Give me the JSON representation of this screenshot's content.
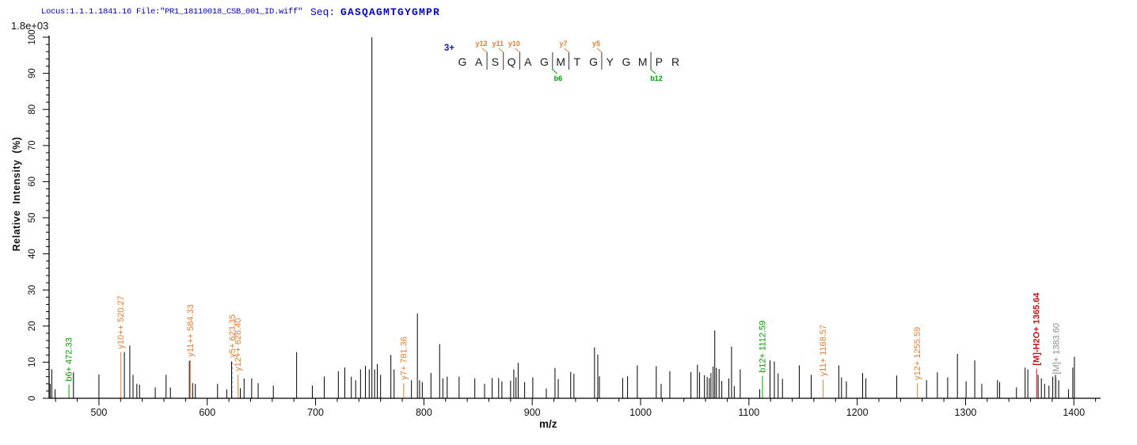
{
  "header": {
    "locus_file": "Locus:1.1.1.1841.16 File:\"PR1_18110018_CSB_001_ID.wiff\"",
    "seq_label": "Seq:",
    "seq_value": "GASQAGMTGYGMPR"
  },
  "scale_label": "1.8e+03",
  "colors": {
    "header_text": "#0000cc",
    "y_ion": "#e87e32",
    "b_ion": "#00a000",
    "precursor_loss": "#cc1111",
    "precursor": "#8c8c8c",
    "peak": "#000000",
    "axis": "#000000",
    "charge_label": "#1414cc",
    "dashed_leader": "#aab8cc",
    "sequence_letter": "#1a1a1a"
  },
  "chart_data": {
    "type": "bar",
    "subtype": "ms2-fragmentation-spectrum",
    "title": "",
    "xlabel": "m/z",
    "ylabel": "Relative Intensity (%)",
    "x_range": [
      454,
      1421
    ],
    "y_range": [
      0,
      100
    ],
    "x_ticks": [
      500,
      600,
      700,
      800,
      900,
      1000,
      1100,
      1200,
      1300,
      1400
    ],
    "x_minor_step": 20,
    "y_ticks": [
      0,
      10,
      20,
      30,
      40,
      50,
      60,
      70,
      80,
      90,
      100
    ],
    "y_minor_step": 2,
    "grid": false,
    "legend": false,
    "base_peak_absolute_intensity": "1.8e+03",
    "precursor_charge": "3+",
    "peptide_sequence": [
      "G",
      "A",
      "S",
      "Q",
      "A",
      "G",
      "M",
      "T",
      "G",
      "Y",
      "G",
      "M",
      "P",
      "R"
    ],
    "fragment_markers": {
      "y_ions": [
        {
          "label": "y12",
          "before_residue_index": 2
        },
        {
          "label": "y11",
          "before_residue_index": 3
        },
        {
          "label": "y10",
          "before_residue_index": 4
        },
        {
          "label": "y7",
          "before_residue_index": 7
        },
        {
          "label": "y5",
          "before_residue_index": 9
        }
      ],
      "b_ions": [
        {
          "label": "b6",
          "before_residue_index": 6
        },
        {
          "label": "b12",
          "before_residue_index": 12
        }
      ]
    },
    "labeled_peaks": [
      {
        "label": "b6+ 472.33",
        "mz": 472.33,
        "pct": 3.8,
        "color_key": "b_ion"
      },
      {
        "label": "y10++ 520.27",
        "mz": 520.27,
        "pct": 12.8,
        "color_key": "y_ion"
      },
      {
        "label": "y11++ 584.33",
        "mz": 584.33,
        "pct": 10.6,
        "color_key": "y_ion"
      },
      {
        "label": "y5+ 623.35",
        "mz": 623.35,
        "pct": 10.4,
        "color_key": "y_ion",
        "dashed": true
      },
      {
        "label": "y12++ 628.40",
        "mz": 628.4,
        "pct": 6.6,
        "color_key": "y_ion"
      },
      {
        "label": "y7+ 781.36",
        "mz": 781.36,
        "pct": 4.2,
        "color_key": "y_ion"
      },
      {
        "label": "b12+ 1112.59",
        "mz": 1112.59,
        "pct": 6.2,
        "color_key": "b_ion"
      },
      {
        "label": "y11+ 1168.57",
        "mz": 1168.57,
        "pct": 5.2,
        "color_key": "y_ion"
      },
      {
        "label": "y12+ 1255.59",
        "mz": 1255.59,
        "pct": 4.2,
        "color_key": "y_ion"
      },
      {
        "label": "[M]-H2O+ 1365.64",
        "mz": 1365.64,
        "pct": 8.2,
        "color_key": "precursor_loss",
        "bold": true
      },
      {
        "label": "[M]+ 1383.60",
        "mz": 1383.6,
        "pct": 5.8,
        "color_key": "precursor"
      }
    ],
    "peaks": [
      [
        455.0,
        4.0
      ],
      [
        456.5,
        8.0
      ],
      [
        459.5,
        2.5
      ],
      [
        476.5,
        7.2
      ],
      [
        500.0,
        6.6
      ],
      [
        523.5,
        12.8
      ],
      [
        528.5,
        14.6
      ],
      [
        531.5,
        6.5
      ],
      [
        535.0,
        4.0
      ],
      [
        537.5,
        3.8
      ],
      [
        552.0,
        3.0
      ],
      [
        562.0,
        6.5
      ],
      [
        566.0,
        3.0
      ],
      [
        583.5,
        10.4
      ],
      [
        586.5,
        4.2
      ],
      [
        589.0,
        4.0
      ],
      [
        609.5,
        4.0
      ],
      [
        618.0,
        2.5
      ],
      [
        622.5,
        10.2
      ],
      [
        630.5,
        2.8
      ],
      [
        634.0,
        5.5
      ],
      [
        641.0,
        5.5
      ],
      [
        647.0,
        4.2
      ],
      [
        661.0,
        3.5
      ],
      [
        682.5,
        12.8
      ],
      [
        697.0,
        3.5
      ],
      [
        708.0,
        6.0
      ],
      [
        721.0,
        7.5
      ],
      [
        727.0,
        8.5
      ],
      [
        733.0,
        6.0
      ],
      [
        737.0,
        5.0
      ],
      [
        741.5,
        8.0
      ],
      [
        746.0,
        9.0
      ],
      [
        749.5,
        8.0
      ],
      [
        752.0,
        100.0
      ],
      [
        754.5,
        8.0
      ],
      [
        757.0,
        9.5
      ],
      [
        760.0,
        6.5
      ],
      [
        769.5,
        12.0
      ],
      [
        772.5,
        8.0
      ],
      [
        788.5,
        5.0
      ],
      [
        794.0,
        23.5
      ],
      [
        796.0,
        5.0
      ],
      [
        798.5,
        4.5
      ],
      [
        806.5,
        7.0
      ],
      [
        814.5,
        15.0
      ],
      [
        817.5,
        5.5
      ],
      [
        821.5,
        6.0
      ],
      [
        832.5,
        6.0
      ],
      [
        847.0,
        5.5
      ],
      [
        856.0,
        4.0
      ],
      [
        863.0,
        5.6
      ],
      [
        869.0,
        5.6
      ],
      [
        872.0,
        4.7
      ],
      [
        880.0,
        4.9
      ],
      [
        883.0,
        8.0
      ],
      [
        885.0,
        5.8
      ],
      [
        887.0,
        9.8
      ],
      [
        893.0,
        4.5
      ],
      [
        900.5,
        5.8
      ],
      [
        913.0,
        2.7
      ],
      [
        921.0,
        8.4
      ],
      [
        924.0,
        5.3
      ],
      [
        935.5,
        7.3
      ],
      [
        938.5,
        6.8
      ],
      [
        957.5,
        14.1
      ],
      [
        960.5,
        12.1
      ],
      [
        962.0,
        6.1
      ],
      [
        983.5,
        5.6
      ],
      [
        988.0,
        6.1
      ],
      [
        997.0,
        9.1
      ],
      [
        1014.5,
        8.9
      ],
      [
        1019.0,
        4.0
      ],
      [
        1027.0,
        7.5
      ],
      [
        1046.5,
        7.3
      ],
      [
        1052.5,
        9.3
      ],
      [
        1054.5,
        7.2
      ],
      [
        1059.0,
        6.4
      ],
      [
        1061.5,
        5.9
      ],
      [
        1063.5,
        5.6
      ],
      [
        1065.0,
        7.0
      ],
      [
        1067.0,
        8.8
      ],
      [
        1068.5,
        18.8
      ],
      [
        1070.0,
        8.4
      ],
      [
        1072.5,
        8.1
      ],
      [
        1075.0,
        4.8
      ],
      [
        1081.5,
        5.5
      ],
      [
        1084.0,
        14.3
      ],
      [
        1086.5,
        3.4
      ],
      [
        1092.0,
        8.0
      ],
      [
        1110.0,
        2.5
      ],
      [
        1119.5,
        10.5
      ],
      [
        1123.5,
        10.2
      ],
      [
        1127.0,
        6.9
      ],
      [
        1131.0,
        5.4
      ],
      [
        1146.5,
        9.1
      ],
      [
        1157.5,
        6.5
      ],
      [
        1183.0,
        9.1
      ],
      [
        1185.5,
        5.8
      ],
      [
        1190.0,
        4.7
      ],
      [
        1205.0,
        7.0
      ],
      [
        1208.0,
        5.5
      ],
      [
        1236.5,
        6.3
      ],
      [
        1264.0,
        5.0
      ],
      [
        1274.0,
        7.2
      ],
      [
        1283.5,
        5.8
      ],
      [
        1292.5,
        12.3
      ],
      [
        1300.5,
        4.7
      ],
      [
        1308.5,
        10.5
      ],
      [
        1315.0,
        4.0
      ],
      [
        1329.5,
        5.0
      ],
      [
        1331.5,
        4.5
      ],
      [
        1347.0,
        3.0
      ],
      [
        1355.0,
        8.5
      ],
      [
        1357.5,
        8.0
      ],
      [
        1367.0,
        6.5
      ],
      [
        1370.0,
        5.5
      ],
      [
        1373.0,
        4.0
      ],
      [
        1377.0,
        3.5
      ],
      [
        1380.5,
        6.0
      ],
      [
        1383.0,
        6.5
      ],
      [
        1386.0,
        5.0
      ],
      [
        1395.0,
        2.5
      ],
      [
        1399.0,
        8.5
      ],
      [
        1400.5,
        11.5
      ]
    ]
  }
}
